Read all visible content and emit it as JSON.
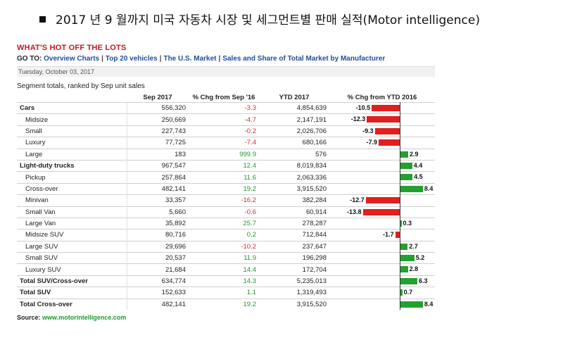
{
  "heading": "2017 년 9 월까지 미국 자동차 시장 및 세그먼트별 판매 실적(Motor intelligence)",
  "brand": "WHAT'S HOT OFF THE LOTS",
  "nav": {
    "prefix": "GO TO:",
    "links": [
      "Overview Charts",
      "Top 20 vehicles",
      "The U.S. Market",
      "Sales and Share of Total Market by Manufacturer"
    ]
  },
  "date": "Tuesday, October 03, 2017",
  "subtitle": "Segment totals, ranked by Sep unit sales",
  "source": {
    "label": "Source:",
    "url": "www.motorintelligence.com"
  },
  "colors": {
    "negative": "#e01f1f",
    "positive": "#22a12e",
    "brand": "#c8161d"
  },
  "chart_data": {
    "type": "table",
    "columns": [
      "",
      "Sep 2017",
      "% Chg from Sep '16",
      "YTD 2017",
      "% Chg from YTD 2016"
    ],
    "bar_column": "% Chg from YTD 2016",
    "bar_colors": {
      "negative": "#e01f1f",
      "positive": "#22a12e"
    },
    "rows": [
      {
        "segment": "Cars",
        "bold": true,
        "sep2017": "556,320",
        "chg_sep": "-3.3",
        "ytd2017": "4,854,639",
        "chg_ytd": -10.5
      },
      {
        "segment": "Midsize",
        "bold": false,
        "sep2017": "250,669",
        "chg_sep": "-4.7",
        "ytd2017": "2,147,191",
        "chg_ytd": -12.3
      },
      {
        "segment": "Small",
        "bold": false,
        "sep2017": "227,743",
        "chg_sep": "-0.2",
        "ytd2017": "2,026,706",
        "chg_ytd": -9.3
      },
      {
        "segment": "Luxury",
        "bold": false,
        "sep2017": "77,725",
        "chg_sep": "-7.4",
        "ytd2017": "680,166",
        "chg_ytd": -7.9
      },
      {
        "segment": "Large",
        "bold": false,
        "sep2017": "183",
        "chg_sep": "999.9",
        "ytd2017": "576",
        "chg_ytd": 2.9
      },
      {
        "segment": "Light-duty trucks",
        "bold": true,
        "sep2017": "967,547",
        "chg_sep": "12.4",
        "ytd2017": "8,019,834",
        "chg_ytd": 4.4
      },
      {
        "segment": "Pickup",
        "bold": false,
        "sep2017": "257,864",
        "chg_sep": "11.6",
        "ytd2017": "2,063,336",
        "chg_ytd": 4.5
      },
      {
        "segment": "Cross-over",
        "bold": false,
        "sep2017": "482,141",
        "chg_sep": "19.2",
        "ytd2017": "3,915,520",
        "chg_ytd": 8.4
      },
      {
        "segment": "Minivan",
        "bold": false,
        "sep2017": "33,357",
        "chg_sep": "-16.2",
        "ytd2017": "382,284",
        "chg_ytd": -12.7
      },
      {
        "segment": "Small Van",
        "bold": false,
        "sep2017": "5,660",
        "chg_sep": "-0.6",
        "ytd2017": "60,914",
        "chg_ytd": -13.8
      },
      {
        "segment": "Large Van",
        "bold": false,
        "sep2017": "35,892",
        "chg_sep": "25.7",
        "ytd2017": "278,287",
        "chg_ytd": 0.3
      },
      {
        "segment": "Midsize SUV",
        "bold": false,
        "sep2017": "80,716",
        "chg_sep": "0.2",
        "ytd2017": "712,844",
        "chg_ytd": -1.7
      },
      {
        "segment": "Large SUV",
        "bold": false,
        "sep2017": "29,696",
        "chg_sep": "-10.2",
        "ytd2017": "237,647",
        "chg_ytd": 2.7
      },
      {
        "segment": "Small SUV",
        "bold": false,
        "sep2017": "20,537",
        "chg_sep": "11.9",
        "ytd2017": "196,298",
        "chg_ytd": 5.2
      },
      {
        "segment": "Luxury SUV",
        "bold": false,
        "sep2017": "21,684",
        "chg_sep": "14.4",
        "ytd2017": "172,704",
        "chg_ytd": 2.8
      },
      {
        "segment": "Total SUV/Cross-over",
        "bold": true,
        "sep2017": "634,774",
        "chg_sep": "14.3",
        "ytd2017": "5,235,013",
        "chg_ytd": 6.3
      },
      {
        "segment": "Total SUV",
        "bold": true,
        "sep2017": "152,633",
        "chg_sep": "1.1",
        "ytd2017": "1,319,493",
        "chg_ytd": 0.7
      },
      {
        "segment": "Total Cross-over",
        "bold": true,
        "sep2017": "482,141",
        "chg_sep": "19.2",
        "ytd2017": "3,915,520",
        "chg_ytd": 8.4
      }
    ]
  }
}
